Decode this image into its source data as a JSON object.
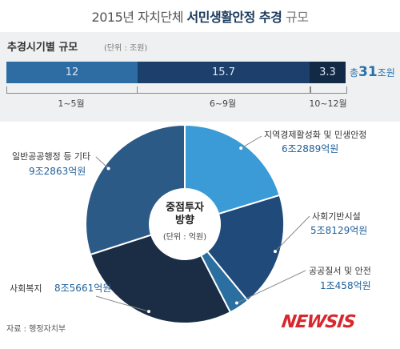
{
  "header": {
    "title_prefix": "2015년 자치단체",
    "title_bold": "서민생활안정 추경",
    "title_suffix": "규모"
  },
  "bar_section": {
    "title": "추경시기별 규모",
    "unit": "(단위 : 조원)",
    "total_prefix": "총",
    "total_value": "31",
    "total_suffix": "조원",
    "periods": [
      "1~5월",
      "6~9월",
      "10~12월"
    ]
  },
  "pie_section": {
    "center_title_line1": "중점투자",
    "center_title_line2": "방향",
    "center_unit": "(단위 : 억원)"
  },
  "chart_data": [
    {
      "type": "bar",
      "orientation": "horizontal-stacked",
      "title": "추경시기별 규모",
      "unit": "(단위 : 조원)",
      "categories": [
        "1~5월",
        "6~9월",
        "10~12월"
      ],
      "values": [
        12,
        15.7,
        3.3
      ],
      "value_labels": [
        "12",
        "15.7",
        "3.3"
      ],
      "colors": [
        "#2e6da4",
        "#1d3f6b",
        "#132a47"
      ],
      "total_label": "총31조원"
    },
    {
      "type": "pie",
      "title": "중점투자 방향",
      "unit": "(단위 : 억원)",
      "categories": [
        "지역경제활성화 및 민생안정",
        "사회기반시설",
        "공공질서 및 안전",
        "사회복지",
        "일반공공행정 등 기타"
      ],
      "values": [
        62889,
        58129,
        10458,
        85661,
        92863
      ],
      "value_labels": [
        "6조2889억원",
        "5조8129억원",
        "1조458억원",
        "8조5661억원",
        "9조2863억원"
      ],
      "colors": [
        "#3b9bd6",
        "#1f4a79",
        "#2a6fa0",
        "#1a2d45",
        "#2c5a86"
      ]
    }
  ],
  "footer": {
    "source": "자료 : 행정자치부",
    "logo": "NEWSIS"
  }
}
